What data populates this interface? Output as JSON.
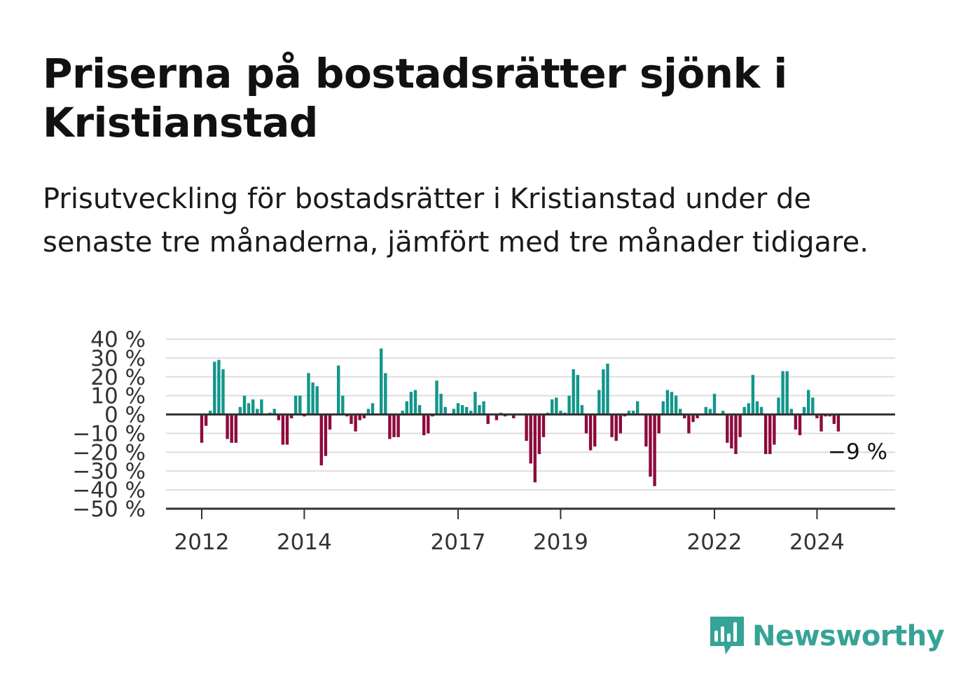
{
  "title": "Priserna på bostadsrätter sjönk i Kristianstad",
  "subtitle": "Prisutveckling för bostadsrätter i Kristianstad under de senaste tre månaderna, jämfört med tre månader tidigare.",
  "brand": {
    "name": "Newsworthy",
    "icon": "newsworthy-logo-icon",
    "color": "#35a396"
  },
  "colors": {
    "positive": "#12968a",
    "negative": "#8d0a3d",
    "axis": "#333333",
    "grid": "#dddddd"
  },
  "chart_data": {
    "type": "bar",
    "ylim": [
      -50,
      40
    ],
    "y_ticks": [
      40,
      30,
      20,
      10,
      0,
      -10,
      -20,
      -30,
      -40,
      -50
    ],
    "y_tick_labels": [
      "40 %",
      "30 %",
      "20 %",
      "10 %",
      "0 %",
      "−10 %",
      "−20 %",
      "−30 %",
      "−40 %",
      "−50 %"
    ],
    "x_tick_labels": [
      {
        "label": "2012",
        "month_index": 0
      },
      {
        "label": "2014",
        "month_index": 24
      },
      {
        "label": "2017",
        "month_index": 60
      },
      {
        "label": "2019",
        "month_index": 84
      },
      {
        "label": "2022",
        "month_index": 120
      },
      {
        "label": "2024",
        "month_index": 144
      }
    ],
    "first_month": "2012-01",
    "values": [
      -15,
      -6,
      2,
      28,
      29,
      24,
      -13,
      -15,
      -15,
      4,
      10,
      6,
      8,
      3,
      8,
      0,
      1,
      3,
      -3,
      -16,
      -16,
      -2,
      10,
      10,
      -1,
      22,
      17,
      15,
      -27,
      -22,
      -8,
      0,
      26,
      10,
      -1,
      -5,
      -9,
      -3,
      -2,
      3,
      6,
      0,
      35,
      22,
      -13,
      -12,
      -12,
      2,
      7,
      12,
      13,
      5,
      -11,
      -10,
      -1,
      18,
      11,
      4,
      0,
      3,
      6,
      5,
      4,
      2,
      12,
      5,
      7,
      -5,
      0,
      -3,
      1,
      -1,
      0,
      -2,
      0,
      0,
      -14,
      -26,
      -36,
      -21,
      -12,
      1,
      8,
      9,
      2,
      1,
      10,
      24,
      21,
      5,
      -10,
      -19,
      -17,
      13,
      24,
      27,
      -12,
      -14,
      -10,
      -1,
      2,
      2,
      7,
      0,
      -17,
      -33,
      -38,
      -10,
      7,
      13,
      12,
      10,
      3,
      -2,
      -10,
      -4,
      -2,
      0,
      4,
      3,
      11,
      0,
      2,
      -15,
      -18,
      -21,
      -12,
      4,
      6,
      21,
      7,
      4,
      -21,
      -21,
      -16,
      9,
      23,
      23,
      3,
      -8,
      -11,
      4,
      13,
      9,
      -2,
      -9,
      -1,
      -1,
      -5,
      -9
    ],
    "end_label": "−9 %"
  }
}
